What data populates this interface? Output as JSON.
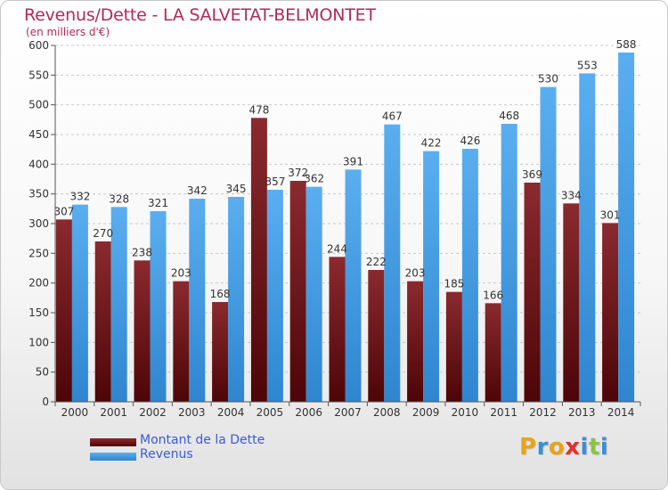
{
  "header": {
    "title": "Revenus/Dette - LA SALVETAT-BELMONTET",
    "subtitle": "(en milliers d'€)"
  },
  "legend": {
    "debt_label": "Montant de la Dette",
    "revenue_label": "Revenus"
  },
  "logo": {
    "text": "Proxiti",
    "letters": [
      "P",
      "r",
      "o",
      "x",
      "i",
      "t",
      "i"
    ],
    "letter_colors": [
      "#e8a317",
      "#3a8fd8",
      "#e8a317",
      "#e0322c",
      "#3a8fd8",
      "#8bc34a",
      "#3a8fd8"
    ]
  },
  "colors": {
    "debt": "#7a1a1f",
    "revenue": "#3d96dd",
    "title": "#b02a5a",
    "legend_text": "#3a5bd8"
  },
  "chart_data": {
    "type": "bar",
    "title": "Revenus/Dette - LA SALVETAT-BELMONTET",
    "subtitle": "(en milliers d'€)",
    "xlabel": "",
    "ylabel": "",
    "ylim": [
      0,
      600
    ],
    "yticks": [
      0,
      50,
      100,
      150,
      200,
      250,
      300,
      350,
      400,
      450,
      500,
      550,
      600
    ],
    "grid": true,
    "legend_position": "bottom-left",
    "categories": [
      "2000",
      "2001",
      "2002",
      "2003",
      "2004",
      "2005",
      "2006",
      "2007",
      "2008",
      "2009",
      "2010",
      "2011",
      "2012",
      "2013",
      "2014"
    ],
    "series": [
      {
        "name": "Montant de la Dette",
        "color": "#7a1a1f",
        "values": [
          307,
          270,
          238,
          203,
          168,
          478,
          372,
          244,
          222,
          203,
          185,
          166,
          369,
          334,
          301
        ]
      },
      {
        "name": "Revenus",
        "color": "#3d96dd",
        "values": [
          332,
          328,
          321,
          342,
          345,
          357,
          362,
          391,
          467,
          422,
          426,
          468,
          530,
          553,
          588
        ]
      }
    ]
  }
}
